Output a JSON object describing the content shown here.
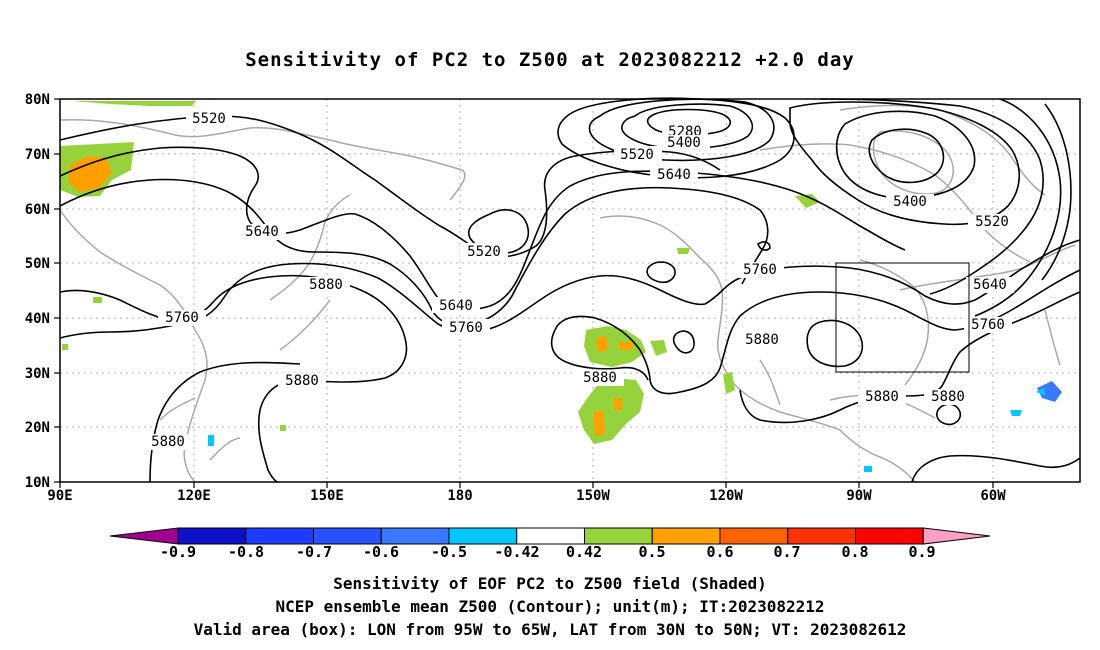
{
  "title": "Sensitivity of PC2 to Z500 at 2023082212 +2.0 day",
  "lat_labels": [
    "80N",
    "70N",
    "60N",
    "50N",
    "40N",
    "30N",
    "20N",
    "10N"
  ],
  "lon_labels": [
    "90E",
    "120E",
    "150E",
    "180",
    "150W",
    "120W",
    "90W",
    "60W"
  ],
  "contour_labels": [
    "5520",
    "5280",
    "5400",
    "5520",
    "5640",
    "5640",
    "5520",
    "5640",
    "5760",
    "5880",
    "5760",
    "5760",
    "5400",
    "5520",
    "5640",
    "5760",
    "5880",
    "5880",
    "5880",
    "5880",
    "5880"
  ],
  "colorbar": {
    "labels": [
      "-0.9",
      "-0.8",
      "-0.7",
      "-0.6",
      "-0.5",
      "-0.42",
      "0.42",
      "0.5",
      "0.6",
      "0.7",
      "0.8",
      "0.9"
    ],
    "colors": [
      "#a00090",
      "#1010c8",
      "#1e3cff",
      "#2852ff",
      "#3c78ff",
      "#00c8ff",
      "#ffffff",
      "#96d23c",
      "#ffa000",
      "#ff6400",
      "#ff3200",
      "#ff0000",
      "#ffa0c8"
    ]
  },
  "box": {
    "lon_from": "95W",
    "lon_to": "65W",
    "lat_from": "30N",
    "lat_to": "50N"
  },
  "footer": {
    "line1": "Sensitivity of EOF PC2 to Z500 field (Shaded)",
    "line2": "NCEP ensemble mean Z500 (Contour); unit(m); IT:2023082212",
    "line3": "Valid area (box): LON from 95W to 65W, LAT from 30N to 50N; VT: 2023082612"
  }
}
